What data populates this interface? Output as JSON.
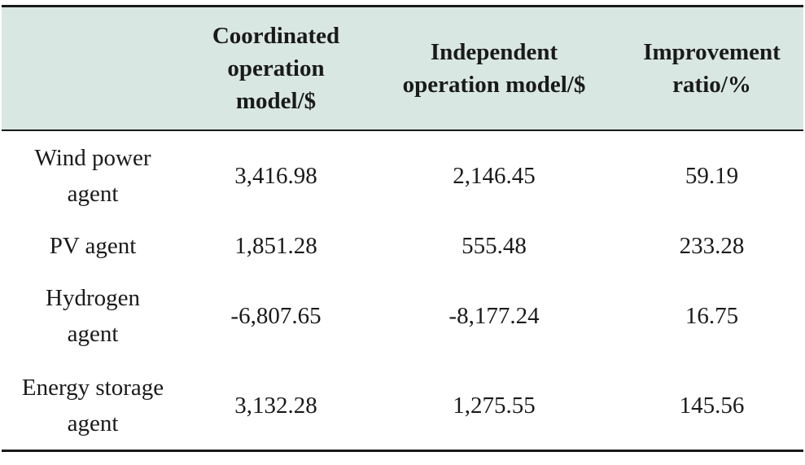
{
  "table": {
    "headers": [
      "",
      "Coordinated operation model/$",
      "Independent operation model/$",
      "Improvement ratio/%"
    ],
    "rows": [
      [
        "Wind power agent",
        "3,416.98",
        "2,146.45",
        "59.19"
      ],
      [
        "PV agent",
        "1,851.28",
        "555.48",
        "233.28"
      ],
      [
        "Hydrogen agent",
        "-6,807.65",
        "-8,177.24",
        "16.75"
      ],
      [
        "Energy storage agent",
        "3,132.28",
        "1,275.55",
        "145.56"
      ]
    ]
  }
}
